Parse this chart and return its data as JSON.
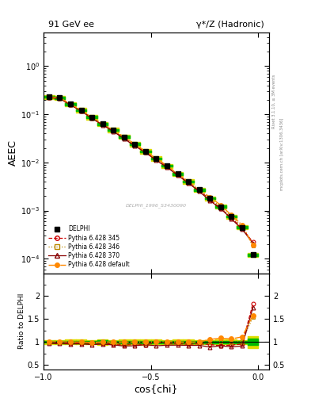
{
  "title_left": "91 GeV ee",
  "title_right": "γ*/Z (Hadronic)",
  "ylabel_main": "AEEC",
  "ylabel_ratio": "Ratio to DELPHI",
  "xlabel": "cos{chi}",
  "right_label_top": "Rivet 3.1.10, ≥ 3M events",
  "right_label_bottom": "mcplots.cern.ch [arXiv:1306.3436]",
  "watermark": "DELPHI_1996_S3430090",
  "xlim": [
    -1.0,
    0.05
  ],
  "ylim_main": [
    5e-05,
    5.0
  ],
  "ylim_ratio": [
    0.4,
    2.5
  ],
  "delphi_x": [
    -0.975,
    -0.925,
    -0.875,
    -0.825,
    -0.775,
    -0.725,
    -0.675,
    -0.625,
    -0.575,
    -0.525,
    -0.475,
    -0.425,
    -0.375,
    -0.325,
    -0.275,
    -0.225,
    -0.175,
    -0.125,
    -0.075,
    -0.025
  ],
  "delphi_y": [
    0.23,
    0.22,
    0.163,
    0.122,
    0.087,
    0.063,
    0.047,
    0.034,
    0.024,
    0.017,
    0.012,
    0.0085,
    0.0058,
    0.004,
    0.0027,
    0.0018,
    0.0012,
    0.00075,
    0.00045,
    0.00012
  ],
  "delphi_yerr": [
    0.005,
    0.005,
    0.004,
    0.003,
    0.002,
    0.002,
    0.001,
    0.001,
    0.0006,
    0.0005,
    0.0003,
    0.0002,
    0.00015,
    0.0001,
    6e-05,
    4e-05,
    3e-05,
    2e-05,
    1e-05,
    8e-06
  ],
  "py345_y": [
    0.225,
    0.217,
    0.159,
    0.119,
    0.084,
    0.061,
    0.045,
    0.032,
    0.023,
    0.016,
    0.012,
    0.0082,
    0.0056,
    0.0038,
    0.0026,
    0.0017,
    0.0011,
    0.0007,
    0.00043,
    0.00022
  ],
  "py346_y": [
    0.228,
    0.218,
    0.161,
    0.121,
    0.085,
    0.062,
    0.046,
    0.033,
    0.024,
    0.017,
    0.012,
    0.0084,
    0.0057,
    0.0039,
    0.0027,
    0.0018,
    0.0012,
    0.00074,
    0.00046,
    0.000185
  ],
  "py370_y": [
    0.222,
    0.212,
    0.156,
    0.117,
    0.082,
    0.06,
    0.044,
    0.031,
    0.022,
    0.016,
    0.011,
    0.0079,
    0.0054,
    0.0037,
    0.0025,
    0.0016,
    0.0011,
    0.00067,
    0.00041,
    0.00021
  ],
  "pydef_y": [
    0.231,
    0.222,
    0.163,
    0.122,
    0.086,
    0.063,
    0.047,
    0.034,
    0.024,
    0.017,
    0.012,
    0.0086,
    0.0058,
    0.004,
    0.0027,
    0.0019,
    0.0013,
    0.0008,
    0.0005,
    0.00019
  ],
  "color_py345": "#cc0000",
  "color_py346": "#bb8800",
  "color_py370": "#880000",
  "color_pydef": "#ff8800",
  "color_delphi": "#000000",
  "color_green_band": "#00bb00",
  "color_yellow_band": "#dddd00",
  "legend_entries": [
    "DELPHI",
    "Pythia 6.428 345",
    "Pythia 6.428 346",
    "Pythia 6.428 370",
    "Pythia 6.428 default"
  ]
}
